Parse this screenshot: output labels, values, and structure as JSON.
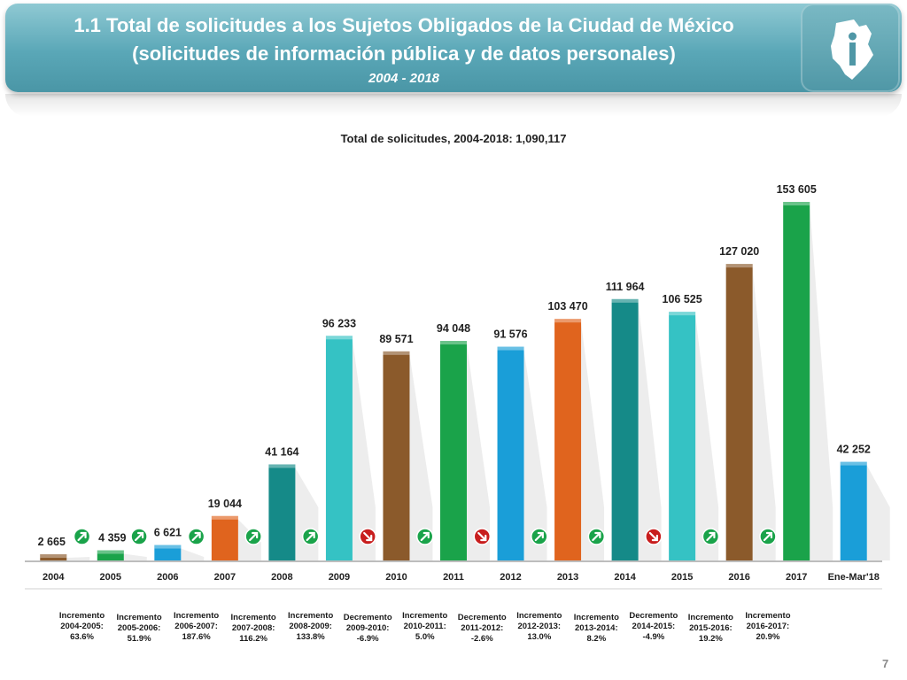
{
  "header": {
    "title_line1": "1.1 Total de solicitudes a los Sujetos Obligados de la Ciudad de México",
    "title_line2": "(solicitudes de información pública y de datos personales)",
    "subtitle": "2004 - 2018"
  },
  "chart_data": {
    "type": "bar",
    "title": "Total de solicitudes, 2004-2018: 1,090,117",
    "xlabel": "",
    "ylabel": "",
    "ylim": [
      0,
      165000
    ],
    "categories": [
      "2004",
      "2005",
      "2006",
      "2007",
      "2008",
      "2009",
      "2010",
      "2011",
      "2012",
      "2013",
      "2014",
      "2015",
      "2016",
      "2017",
      "Ene-Mar'18"
    ],
    "values": [
      2665,
      4359,
      6621,
      19044,
      41164,
      96233,
      89571,
      94048,
      91576,
      103470,
      111964,
      106525,
      127020,
      153605,
      42252
    ],
    "value_labels": [
      "2 665",
      "4 359",
      "6 621",
      "19 044",
      "41 164",
      "96 233",
      "89 571",
      "94 048",
      "91 576",
      "103 470",
      "111 964",
      "106 525",
      "127 020",
      "153 605",
      "42 252"
    ],
    "bar_colors": [
      "#8b5a2b",
      "#1aa34a",
      "#1a9ed8",
      "#e0641e",
      "#158a88",
      "#35c2c4",
      "#8b5a2b",
      "#1aa34a",
      "#1a9ed8",
      "#e0641e",
      "#158a88",
      "#35c2c4",
      "#8b5a2b",
      "#1aa34a",
      "#1a9ed8"
    ],
    "changes": [
      {
        "direction": "up",
        "label": "Incremento",
        "period": "2004-2005:",
        "value": "63.6%"
      },
      {
        "direction": "up",
        "label": "Incremento",
        "period": "2005-2006:",
        "value": "51.9%"
      },
      {
        "direction": "up",
        "label": "Incremento",
        "period": "2006-2007:",
        "value": "187.6%"
      },
      {
        "direction": "up",
        "label": "Incremento",
        "period": "2007-2008:",
        "value": "116.2%"
      },
      {
        "direction": "up",
        "label": "Incremento",
        "period": "2008-2009:",
        "value": "133.8%"
      },
      {
        "direction": "down",
        "label": "Decremento",
        "period": "2009-2010:",
        "value": "-6.9%"
      },
      {
        "direction": "up",
        "label": "Incremento",
        "period": "2010-2011:",
        "value": "5.0%"
      },
      {
        "direction": "down",
        "label": "Decremento",
        "period": "2011-2012:",
        "value": "-2.6%"
      },
      {
        "direction": "up",
        "label": "Incremento",
        "period": "2012-2013:",
        "value": "13.0%"
      },
      {
        "direction": "up",
        "label": "Incremento",
        "period": "2013-2014:",
        "value": "8.2%"
      },
      {
        "direction": "down",
        "label": "Decremento",
        "period": "2014-2015:",
        "value": "-4.9%"
      },
      {
        "direction": "up",
        "label": "Incremento",
        "period": "2015-2016:",
        "value": "19.2%"
      },
      {
        "direction": "up",
        "label": "Incremento",
        "period": "2016-2017:",
        "value": "20.9%"
      }
    ],
    "colors": {
      "up": "#1aa34a",
      "down": "#c81e1e"
    }
  },
  "page_number": "7"
}
